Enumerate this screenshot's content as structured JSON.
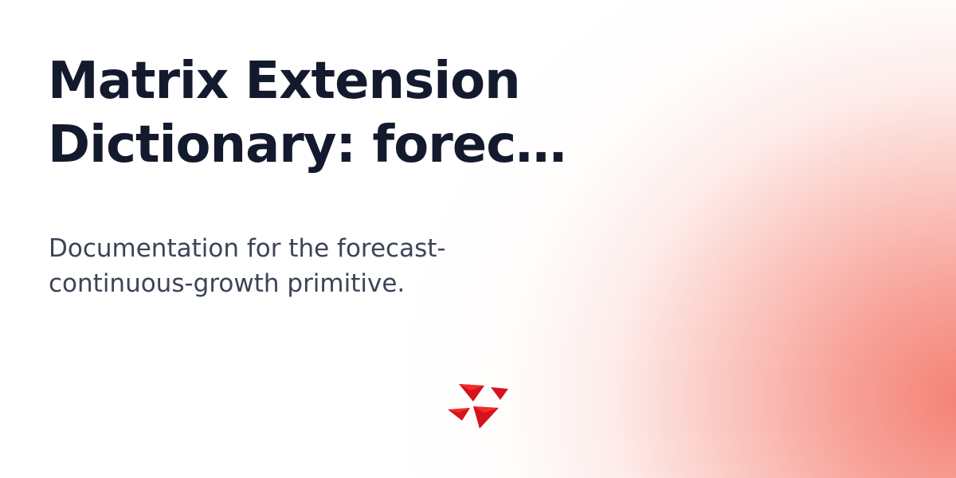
{
  "title": {
    "line_1": "Matrix Extension",
    "line_2": "Dictionary: forec…"
  },
  "description": {
    "line_1": "Documentation for the forecast-",
    "line_2": "continuous-growth primitive."
  },
  "logo": {
    "icon": "mintlify-triangles-logo-icon",
    "color": "#d4141a",
    "highlight_color": "#f52a2a"
  },
  "colors": {
    "title": "#141a2e",
    "description": "#3c4456",
    "background": "#ffffff",
    "gradient": "#f37062"
  }
}
